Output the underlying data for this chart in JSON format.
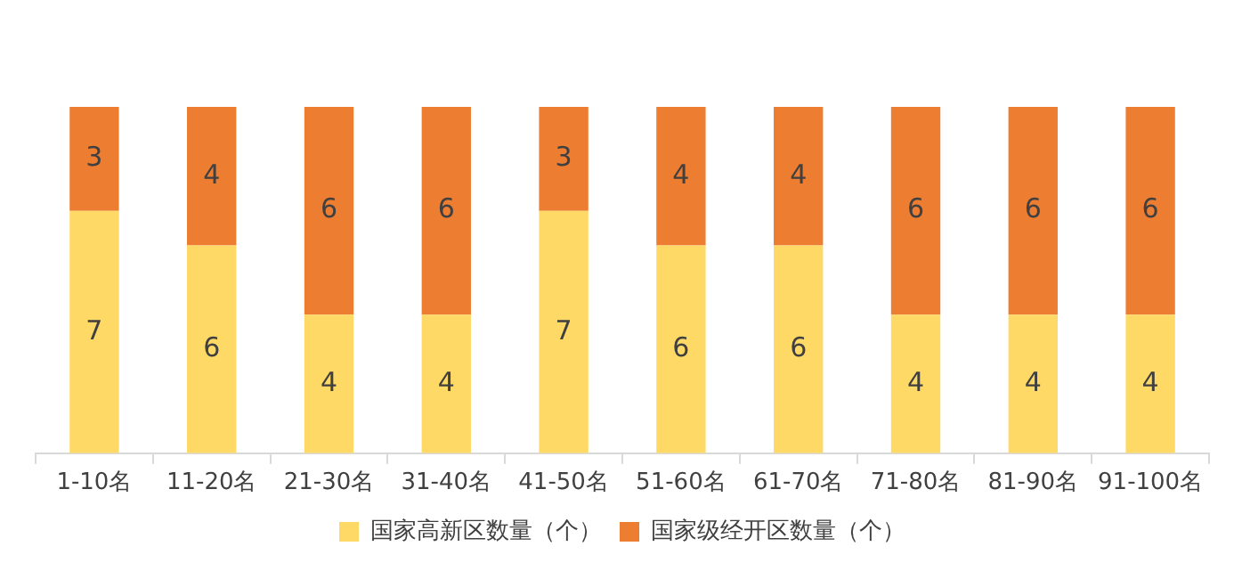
{
  "chart_data": {
    "type": "bar",
    "stacked": true,
    "categories": [
      "1-10名",
      "11-20名",
      "21-30名",
      "31-40名",
      "41-50名",
      "51-60名",
      "61-70名",
      "71-80名",
      "81-90名",
      "91-100名"
    ],
    "series": [
      {
        "name": "国家高新区数量（个）",
        "color": "#ffd966",
        "values": [
          7,
          6,
          4,
          4,
          7,
          6,
          6,
          4,
          4,
          4
        ]
      },
      {
        "name": "国家级经开区数量（个）",
        "color": "#ed7d31",
        "values": [
          3,
          4,
          6,
          6,
          3,
          4,
          4,
          6,
          6,
          6
        ]
      }
    ],
    "data_labels": true,
    "legend": "bottom",
    "grid": false,
    "tick_labels": "x"
  }
}
